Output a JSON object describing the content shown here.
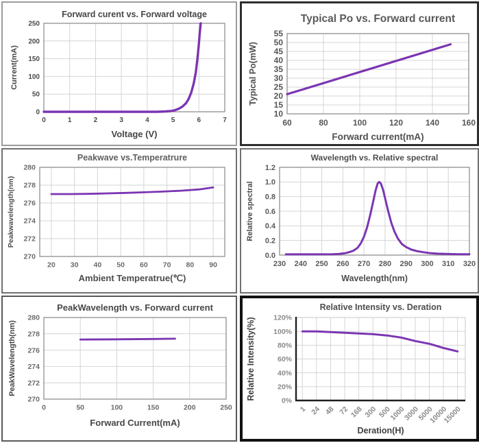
{
  "palette": {
    "accent": "#7b35b2",
    "grid": "#d4d4d4",
    "frame": "#8f8f8f",
    "axis_dark": "#1f1f1f",
    "title_gray": "#595959",
    "title_dark": "#464646"
  },
  "chart_data": [
    {
      "type": "line",
      "title": "Forward curent vs. Forward voltage",
      "xlabel": "Voltage (V)",
      "ylabel": "Current(mA)",
      "xlim": [
        0,
        7
      ],
      "ylim": [
        0,
        250
      ],
      "xticks": [
        0,
        1,
        2,
        3,
        4,
        5,
        6,
        7
      ],
      "xtick_labels": [
        "0",
        "1",
        "2",
        "3",
        "4",
        "5",
        "6",
        "7"
      ],
      "yticks": [
        0,
        50,
        100,
        150,
        200,
        250
      ],
      "ytick_labels": [
        "0",
        "50",
        "100",
        "150",
        "200",
        "250"
      ],
      "grid": true,
      "points": [
        [
          0,
          0
        ],
        [
          1,
          0
        ],
        [
          2,
          0
        ],
        [
          3,
          0
        ],
        [
          4,
          0
        ],
        [
          4.4,
          0
        ],
        [
          4.7,
          1
        ],
        [
          4.9,
          2
        ],
        [
          5.05,
          4
        ],
        [
          5.2,
          8
        ],
        [
          5.35,
          14
        ],
        [
          5.5,
          24
        ],
        [
          5.6,
          36
        ],
        [
          5.7,
          54
        ],
        [
          5.8,
          80
        ],
        [
          5.88,
          112
        ],
        [
          5.94,
          148
        ],
        [
          5.99,
          185
        ],
        [
          6.03,
          220
        ],
        [
          6.07,
          250
        ]
      ]
    },
    {
      "type": "line",
      "title": "Typical Po vs. Forward current",
      "xlabel": "Forward current(mA)",
      "ylabel": "Typical Po(mW)",
      "xlim": [
        60,
        160
      ],
      "ylim": [
        10,
        55
      ],
      "xticks": [
        60,
        80,
        100,
        120,
        140,
        160
      ],
      "xtick_labels": [
        "60",
        "80",
        "100",
        "120",
        "140",
        "160"
      ],
      "yticks": [
        10,
        15,
        20,
        25,
        30,
        35,
        40,
        45,
        50,
        55
      ],
      "ytick_labels": [
        "10",
        "15",
        "20",
        "25",
        "30",
        "35",
        "40",
        "45",
        "50",
        "55"
      ],
      "grid": true,
      "points": [
        [
          60,
          21
        ],
        [
          150,
          49
        ]
      ]
    },
    {
      "type": "line",
      "title": "Peakwave vs.Temperatrure",
      "xlabel": "Ambient Temperatrue(℃)",
      "ylabel": "Peakwavelength(nm)",
      "xlim": [
        15,
        95
      ],
      "ylim": [
        270,
        280
      ],
      "xticks": [
        20,
        30,
        40,
        50,
        60,
        70,
        80,
        90
      ],
      "xtick_labels": [
        "20",
        "30",
        "40",
        "50",
        "60",
        "70",
        "80",
        "90"
      ],
      "yticks": [
        270,
        272,
        274,
        276,
        278,
        280
      ],
      "ytick_labels": [
        "270",
        "272",
        "274",
        "276",
        "278",
        "280"
      ],
      "grid": true,
      "points": [
        [
          20,
          277.0
        ],
        [
          28,
          277.0
        ],
        [
          36,
          277.02
        ],
        [
          44,
          277.08
        ],
        [
          52,
          277.13
        ],
        [
          60,
          277.2
        ],
        [
          68,
          277.28
        ],
        [
          76,
          277.38
        ],
        [
          84,
          277.52
        ],
        [
          90,
          277.75
        ]
      ]
    },
    {
      "type": "line",
      "title": "Wavelength vs. Relative spectral",
      "xlabel": "Wavelength(nm)",
      "ylabel": "Relative spectral",
      "xlim": [
        230,
        320
      ],
      "ylim": [
        0,
        1.2
      ],
      "xticks": [
        230,
        240,
        250,
        260,
        270,
        280,
        290,
        300,
        310,
        320
      ],
      "xtick_labels": [
        "230",
        "240",
        "250",
        "260",
        "270",
        "280",
        "290",
        "300",
        "310",
        "320"
      ],
      "yticks": [
        0,
        0.2,
        0.4,
        0.6,
        0.8,
        1.0,
        1.2
      ],
      "ytick_labels": [
        "0.0",
        "0.2",
        "0.4",
        "0.6",
        "0.8",
        "1.0",
        "1.2"
      ],
      "grid": true,
      "points": [
        [
          233,
          0.01
        ],
        [
          245,
          0.01
        ],
        [
          255,
          0.012
        ],
        [
          258,
          0.015
        ],
        [
          261,
          0.025
        ],
        [
          263,
          0.04
        ],
        [
          265,
          0.06
        ],
        [
          267,
          0.1
        ],
        [
          268.5,
          0.16
        ],
        [
          270,
          0.25
        ],
        [
          271.5,
          0.38
        ],
        [
          273,
          0.55
        ],
        [
          274.5,
          0.75
        ],
        [
          275.5,
          0.88
        ],
        [
          276.5,
          0.98
        ],
        [
          277.2,
          1.0
        ],
        [
          278,
          0.98
        ],
        [
          279,
          0.9
        ],
        [
          280,
          0.78
        ],
        [
          281.5,
          0.6
        ],
        [
          283,
          0.44
        ],
        [
          284.5,
          0.32
        ],
        [
          286,
          0.23
        ],
        [
          288,
          0.15
        ],
        [
          290,
          0.11
        ],
        [
          292.5,
          0.075
        ],
        [
          295,
          0.055
        ],
        [
          298,
          0.04
        ],
        [
          301,
          0.028
        ],
        [
          305,
          0.02
        ],
        [
          310,
          0.015
        ],
        [
          315,
          0.012
        ],
        [
          320,
          0.012
        ]
      ]
    },
    {
      "type": "line",
      "title": "PeakWavelength vs. Forward current",
      "xlabel": "Forward Current(mA)",
      "ylabel": "PeakWavelength(nm)",
      "xlim": [
        0,
        250
      ],
      "ylim": [
        270,
        280
      ],
      "xticks": [
        0,
        50,
        100,
        150,
        200,
        250
      ],
      "xtick_labels": [
        "0",
        "50",
        "100",
        "150",
        "200",
        "250"
      ],
      "yticks": [
        270,
        272,
        274,
        276,
        278,
        280
      ],
      "ytick_labels": [
        "270",
        "272",
        "274",
        "276",
        "278",
        "280"
      ],
      "grid": true,
      "points": [
        [
          50,
          277.3
        ],
        [
          100,
          277.33
        ],
        [
          150,
          277.37
        ],
        [
          180,
          277.4
        ]
      ]
    },
    {
      "type": "line",
      "title": "Relative Intensity vs. Deration",
      "xlabel": "Deration(H)",
      "ylabel": "Relative Intensity(%)",
      "categories": [
        "1",
        "24",
        "48",
        "72",
        "168",
        "300",
        "500",
        "1000",
        "3000",
        "5000",
        "10000",
        "15000"
      ],
      "values": [
        100,
        100,
        99,
        98,
        97,
        96,
        94,
        91,
        86,
        82,
        76,
        71
      ],
      "ylim": [
        0,
        120
      ],
      "yticks": [
        0,
        20,
        40,
        60,
        80,
        100,
        120
      ],
      "ytick_labels": [
        "0%",
        "20%",
        "40%",
        "60%",
        "80%",
        "100%",
        "120%"
      ],
      "grid": true
    }
  ]
}
